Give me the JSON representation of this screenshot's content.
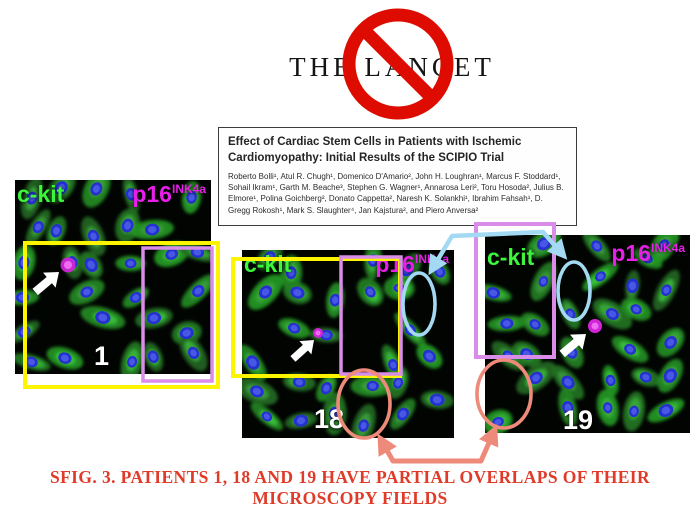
{
  "logo": {
    "text": "THE LANCET"
  },
  "paper": {
    "title": "Effect of Cardiac Stem Cells in Patients with Ischemic Cardiomyopathy: Initial Results of the SCIPIO Trial",
    "authors": "Roberto Bolli¹, Atul R. Chugh¹, Domenico D'Amario², John H. Loughran¹, Marcus F. Stoddard¹, Sohail Ikram¹, Garth M. Beache³, Stephen G. Wagner¹, Annarosa Leri², Toru Hosoda², Julius B. Elmore¹, Polina Goichberg², Donato Cappetta², Naresh K. Solankhi¹, Ibrahim Fahsah¹, D. Gregg Rokosh¹, Mark S. Slaughter⁴, Jan Kajstura², and Piero Anversa²"
  },
  "panels": [
    {
      "patient": "1",
      "ckit_label": "c-kit",
      "p16_label": "p16",
      "p16_sup": "INK4a"
    },
    {
      "patient": "18",
      "ckit_label": "c-kit",
      "p16_label": "p16",
      "p16_sup": "INK4a"
    },
    {
      "patient": "19",
      "ckit_label": "c-kit",
      "p16_label": "p16",
      "p16_sup": "INK4a"
    }
  ],
  "caption": {
    "line1": "SFIG. 3. PATIENTS 1, 18 AND 19 HAVE PARTIAL OVERLAPS OF THEIR",
    "line2": "MICROSCOPY FIELDS"
  },
  "colors": {
    "ban_red": "#dd0b00",
    "caption_red": "#e03a28",
    "ckit_green": "#3cf53c",
    "p16_magenta": "#e81fe8",
    "overlap_yellow": "#fdf400",
    "overlap_violet": "#d98ce8",
    "ellipse_blue": "#a3d9f2",
    "ellipse_salmon": "#ee8a7a",
    "nucleus_blue": "#2530cf",
    "cell_green": "#2a8f2a"
  }
}
